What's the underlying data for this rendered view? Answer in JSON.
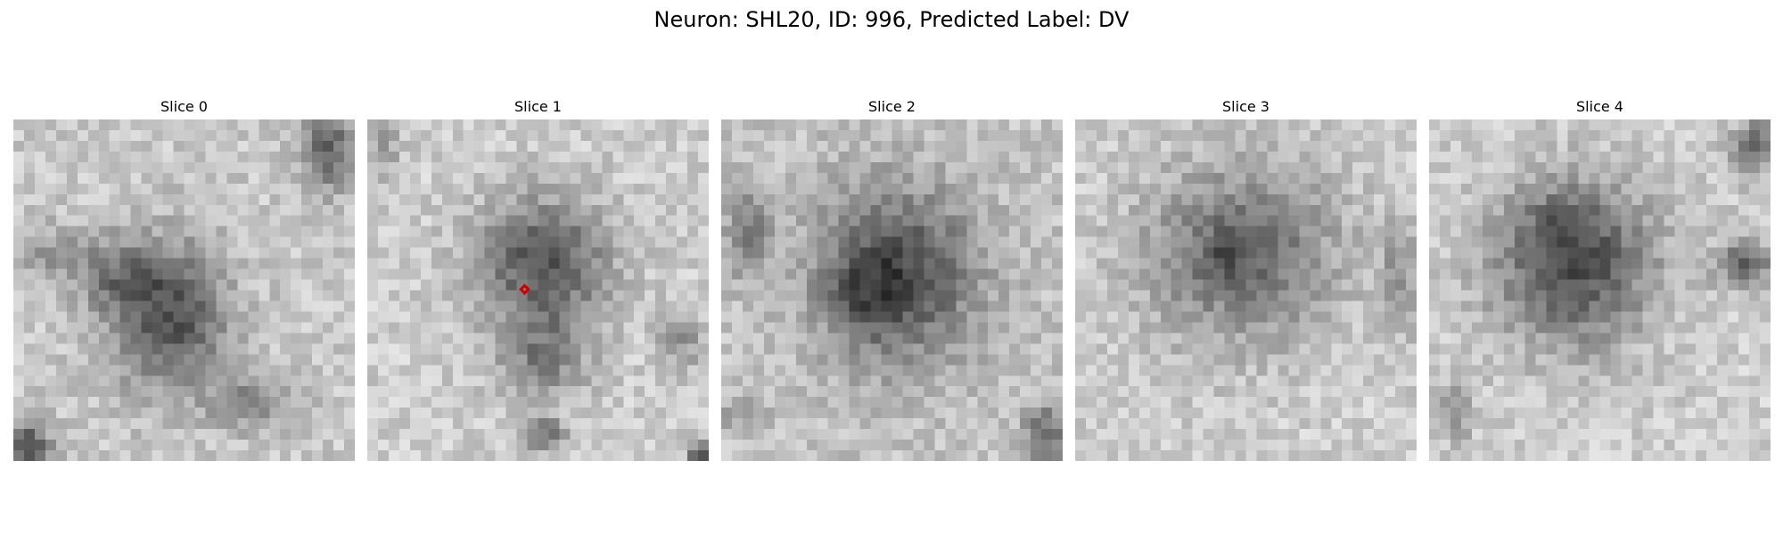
{
  "figure": {
    "title": "Neuron: SHL20, ID: 996, Predicted Label: DV"
  },
  "marker": {
    "color": "#d00000",
    "shape": "diamond",
    "slice": 1
  },
  "slices": [
    {
      "title": "Slice 0"
    },
    {
      "title": "Slice 1"
    },
    {
      "title": "Slice 2"
    },
    {
      "title": "Slice 3"
    },
    {
      "title": "Slice 4"
    }
  ]
}
